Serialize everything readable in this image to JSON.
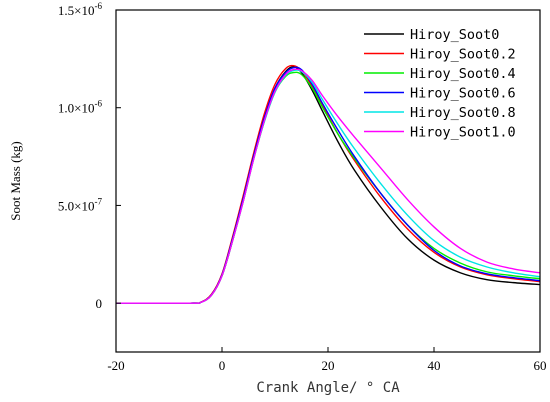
{
  "chart_data": {
    "type": "line",
    "title": "",
    "xlabel": "Crank Angle/ ° CA",
    "ylabel": "Soot Mass (kg)",
    "xlim": [
      -20,
      60
    ],
    "ylim": [
      -2.5e-07,
      1.5e-06
    ],
    "x_ticks": [
      -20,
      0,
      20,
      40,
      60
    ],
    "x_tick_labels": [
      "-20",
      "0",
      "20",
      "40",
      "60"
    ],
    "y_ticks": [
      0,
      5e-07,
      1e-06,
      1.5e-06
    ],
    "y_tick_labels": [
      {
        "mantissa": "0",
        "exp": ""
      },
      {
        "mantissa": "5.0×10",
        "exp": "-7"
      },
      {
        "mantissa": "1.0×10",
        "exp": "-6"
      },
      {
        "mantissa": "1.5×10",
        "exp": "-6"
      }
    ],
    "grid": false,
    "legend_position": "top-right",
    "x": [
      -20,
      -6,
      -4,
      -2,
      0,
      2,
      4,
      6,
      8,
      10,
      12,
      13.5,
      15,
      17,
      19,
      22,
      25,
      30,
      35,
      40,
      45,
      50,
      55,
      60
    ],
    "series": [
      {
        "name": "Hiroy_Soot0",
        "color": "#000000",
        "values": [
          0,
          0,
          5e-09,
          4e-08,
          1.4e-07,
          3.2e-07,
          5.3e-07,
          7.5e-07,
          9.5e-07,
          1.1e-06,
          1.185e-06,
          1.21e-06,
          1.18e-06,
          1.09e-06,
          9.8e-07,
          8.2e-07,
          6.8e-07,
          4.9e-07,
          3.3e-07,
          2.2e-07,
          1.55e-07,
          1.2e-07,
          1.05e-07,
          9.5e-08
        ]
      },
      {
        "name": "Hiroy_Soot0.2",
        "color": "#ff0000",
        "values": [
          0,
          0,
          5e-09,
          4.5e-08,
          1.5e-07,
          3.4e-07,
          5.5e-07,
          7.7e-07,
          9.7e-07,
          1.12e-06,
          1.2e-06,
          1.215e-06,
          1.19e-06,
          1.11e-06,
          1.01e-06,
          8.6e-07,
          7.3e-07,
          5.4e-07,
          3.8e-07,
          2.6e-07,
          1.85e-07,
          1.45e-07,
          1.25e-07,
          1.1e-07
        ]
      },
      {
        "name": "Hiroy_Soot0.4",
        "color": "#00ee00",
        "values": [
          0,
          0,
          4e-09,
          4e-08,
          1.4e-07,
          3.2e-07,
          5.2e-07,
          7.4e-07,
          9.3e-07,
          1.08e-06,
          1.16e-06,
          1.18e-06,
          1.17e-06,
          1.1e-06,
          1e-06,
          8.6e-07,
          7.4e-07,
          5.6e-07,
          4e-07,
          2.8e-07,
          2.05e-07,
          1.6e-07,
          1.4e-07,
          1.25e-07
        ]
      },
      {
        "name": "Hiroy_Soot0.6",
        "color": "#0000ff",
        "values": [
          0,
          0,
          4e-09,
          4.2e-08,
          1.45e-07,
          3.3e-07,
          5.35e-07,
          7.55e-07,
          9.5e-07,
          1.1e-06,
          1.18e-06,
          1.205e-06,
          1.195e-06,
          1.12e-06,
          1.02e-06,
          8.8e-07,
          7.5e-07,
          5.6e-07,
          4e-07,
          2.7e-07,
          1.9e-07,
          1.5e-07,
          1.3e-07,
          1.15e-07
        ]
      },
      {
        "name": "Hiroy_Soot0.8",
        "color": "#00e5e5",
        "values": [
          0,
          0,
          4e-09,
          4e-08,
          1.4e-07,
          3.2e-07,
          5.2e-07,
          7.4e-07,
          9.3e-07,
          1.08e-06,
          1.165e-06,
          1.19e-06,
          1.185e-06,
          1.13e-06,
          1.04e-06,
          9.1e-07,
          7.9e-07,
          6.1e-07,
          4.5e-07,
          3.2e-07,
          2.35e-07,
          1.85e-07,
          1.55e-07,
          1.35e-07
        ]
      },
      {
        "name": "Hiroy_Soot1.0",
        "color": "#ff00ff",
        "values": [
          0,
          0,
          4e-09,
          4e-08,
          1.4e-07,
          3.2e-07,
          5.2e-07,
          7.4e-07,
          9.35e-07,
          1.085e-06,
          1.17e-06,
          1.195e-06,
          1.19e-06,
          1.14e-06,
          1.06e-06,
          9.5e-07,
          8.5e-07,
          6.9e-07,
          5.3e-07,
          3.9e-07,
          2.8e-07,
          2.1e-07,
          1.75e-07,
          1.55e-07
        ]
      }
    ]
  }
}
